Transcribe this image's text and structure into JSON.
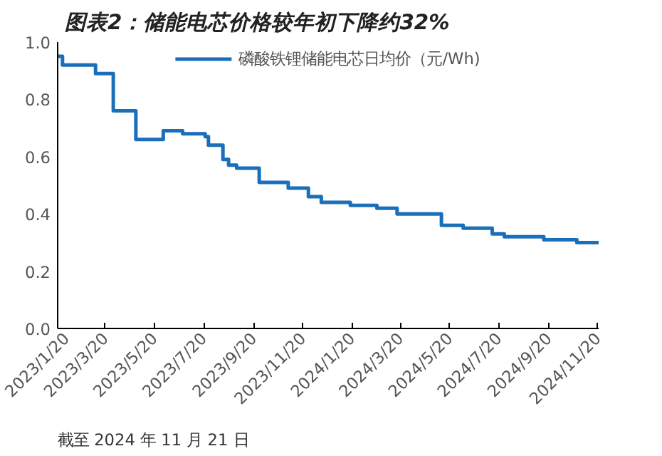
{
  "chart_data": {
    "type": "step",
    "title": "图表2：储能电芯价格较年初下降约32%",
    "annotations": [
      "截至 2024 年 11 月 21 日"
    ],
    "x": [
      "2023-01-20",
      "2023-01-26",
      "2023-03-08",
      "2023-03-30",
      "2023-04-27",
      "2023-05-31",
      "2023-06-24",
      "2023-07-22",
      "2023-07-26",
      "2023-08-13",
      "2023-08-20",
      "2023-08-30",
      "2023-09-27",
      "2023-11-02",
      "2023-11-27",
      "2023-12-13",
      "2024-01-18",
      "2024-02-20",
      "2024-03-16",
      "2024-05-10",
      "2024-06-06",
      "2024-07-12",
      "2024-07-27",
      "2024-09-14",
      "2024-10-25",
      "2024-11-21"
    ],
    "series": [
      {
        "name": "磷酸铁锂储能电芯日均价（元/Wh)",
        "color": "#1a6fba",
        "values": [
          0.95,
          0.92,
          0.89,
          0.76,
          0.66,
          0.69,
          0.68,
          0.67,
          0.64,
          0.59,
          0.57,
          0.56,
          0.51,
          0.49,
          0.46,
          0.44,
          0.43,
          0.42,
          0.4,
          0.36,
          0.35,
          0.33,
          0.32,
          0.31,
          0.3,
          0.3
        ]
      }
    ],
    "xlim": [
      "2023-01-20",
      "2024-11-21"
    ],
    "xticks": [
      {
        "value": "2023-01-20",
        "label": "2023/1/20"
      },
      {
        "value": "2023-03-20",
        "label": "2023/3/20"
      },
      {
        "value": "2023-05-20",
        "label": "2023/5/20"
      },
      {
        "value": "2023-07-20",
        "label": "2023/7/20"
      },
      {
        "value": "2023-09-20",
        "label": "2023/9/20"
      },
      {
        "value": "2023-11-20",
        "label": "2023/11/20"
      },
      {
        "value": "2024-01-20",
        "label": "2024/1/20"
      },
      {
        "value": "2024-03-20",
        "label": "2024/3/20"
      },
      {
        "value": "2024-05-20",
        "label": "2024/5/20"
      },
      {
        "value": "2024-07-20",
        "label": "2024/7/20"
      },
      {
        "value": "2024-09-20",
        "label": "2024/9/20"
      },
      {
        "value": "2024-11-20",
        "label": "2024/11/20"
      }
    ],
    "ylim": [
      0,
      1
    ],
    "yticks": [
      {
        "value": 0,
        "label": "0.0"
      },
      {
        "value": 0.2,
        "label": "0.2"
      },
      {
        "value": 0.4,
        "label": "0.4"
      },
      {
        "value": 0.6,
        "label": "0.6"
      },
      {
        "value": 0.8,
        "label": "0.8"
      },
      {
        "value": 1,
        "label": "1.0"
      }
    ],
    "legend": "top",
    "grid": false
  }
}
